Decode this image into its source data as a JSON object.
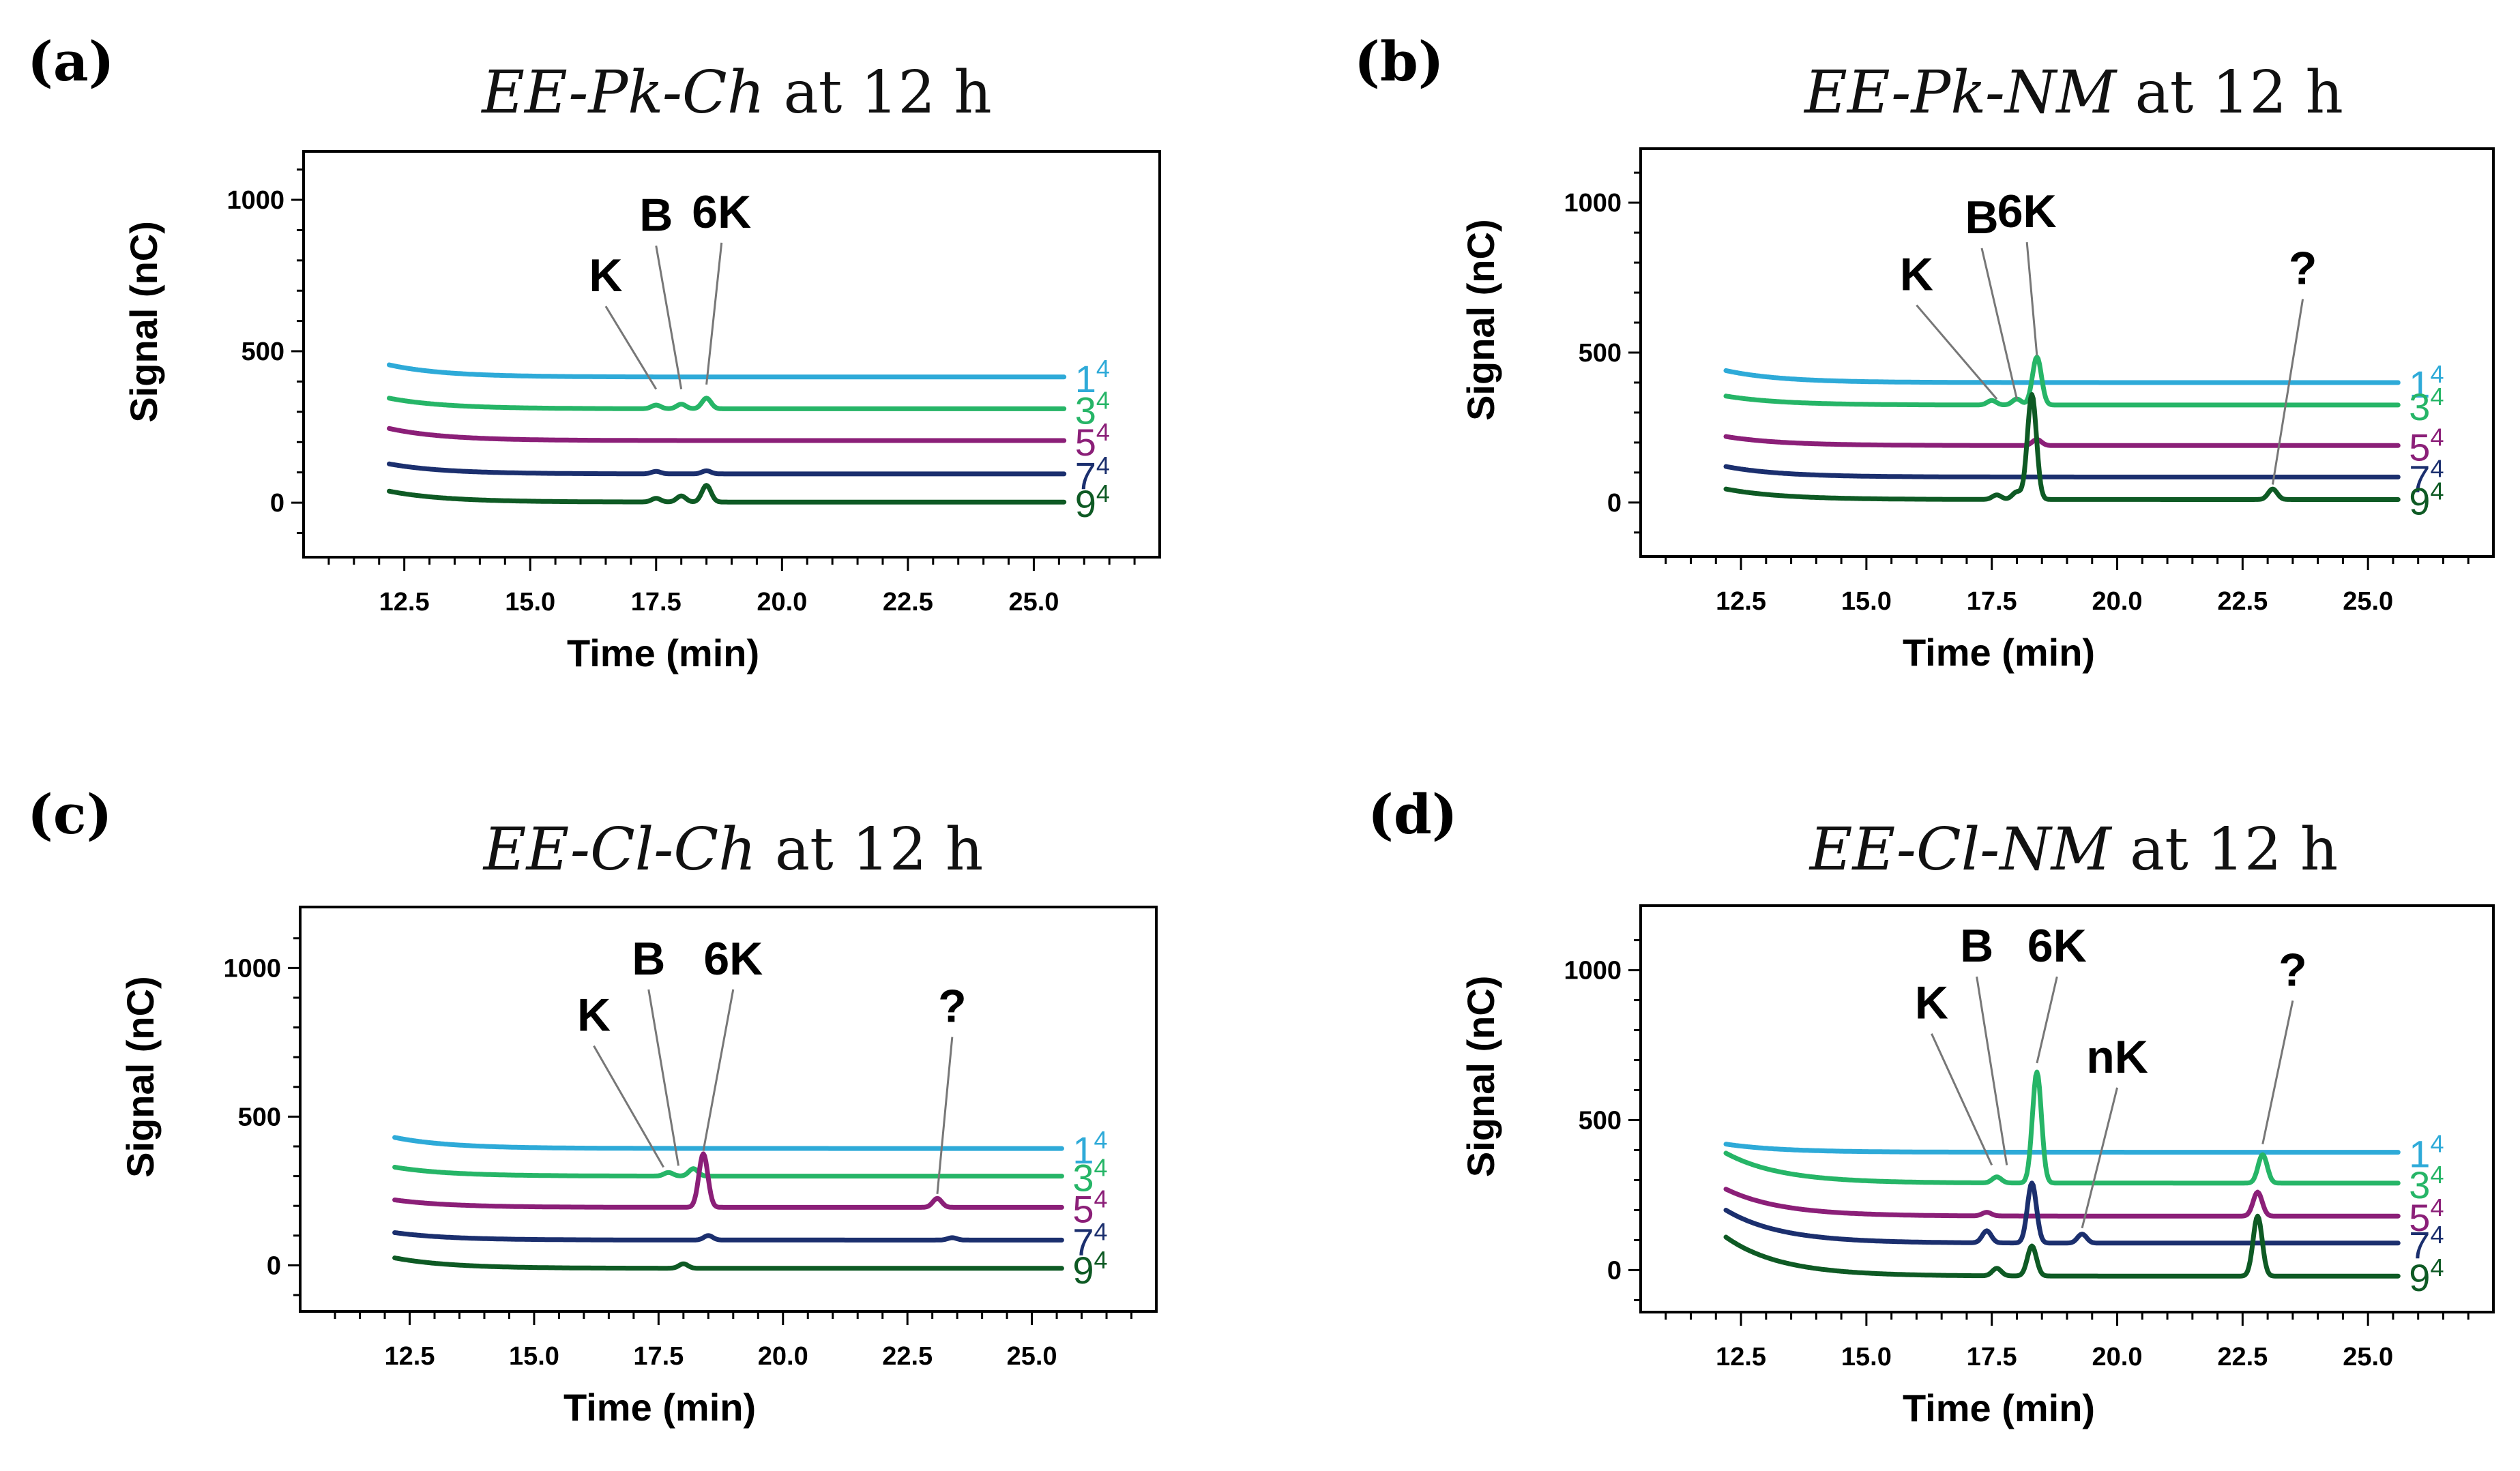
{
  "chart_data": [
    {
      "type": "line",
      "panel_label": "(a)",
      "title_italic": "EE-Pk-Ch",
      "title_rest": " at 12 h",
      "xlabel": "Time (min)",
      "ylabel": "Signal (nC)",
      "xlim": [
        10.5,
        27.5
      ],
      "ylim": [
        -180,
        1160
      ],
      "xticks": [
        "12.5",
        "15.0",
        "17.5",
        "20.0",
        "22.5",
        "25.0"
      ],
      "yticks": [
        "0",
        "500",
        "1000"
      ],
      "series": [
        {
          "name": "1",
          "sup": "4",
          "color": "#2eaad8",
          "baseline": 415,
          "start": 455,
          "peaks": []
        },
        {
          "name": "3",
          "sup": "4",
          "color": "#26b567",
          "baseline": 310,
          "start": 345,
          "peaks": [
            [
              17.5,
              12
            ],
            [
              18.0,
              15
            ],
            [
              18.5,
              35
            ]
          ]
        },
        {
          "name": "5",
          "sup": "4",
          "color": "#8b1f78",
          "baseline": 205,
          "start": 245,
          "peaks": []
        },
        {
          "name": "7",
          "sup": "4",
          "color": "#1b2f6e",
          "baseline": 95,
          "start": 128,
          "peaks": [
            [
              17.5,
              8
            ],
            [
              18.5,
              10
            ]
          ]
        },
        {
          "name": "9",
          "sup": "4",
          "color": "#0e5a24",
          "baseline": 2,
          "start": 38,
          "peaks": [
            [
              17.5,
              12
            ],
            [
              18.0,
              20
            ],
            [
              18.5,
              55
            ]
          ]
        }
      ],
      "annotations": [
        {
          "text": "K",
          "x": 17.5,
          "signal": 375,
          "label_x": 16.5,
          "label_y": 680
        },
        {
          "text": "B",
          "x": 18.0,
          "signal": 375,
          "label_x": 17.5,
          "label_y": 880
        },
        {
          "text": "6K",
          "x": 18.5,
          "signal": 390,
          "label_x": 18.8,
          "label_y": 890
        }
      ]
    },
    {
      "type": "line",
      "panel_label": "(b)",
      "title_italic": "EE-Pk-NM",
      "title_rest": " at 12 h",
      "xlabel": "Time (min)",
      "ylabel": "Signal (nC)",
      "xlim": [
        10.5,
        27.5
      ],
      "ylim": [
        -180,
        1180
      ],
      "xticks": [
        "12.5",
        "15.0",
        "17.5",
        "20.0",
        "22.5",
        "25.0"
      ],
      "yticks": [
        "0",
        "500",
        "1000"
      ],
      "series": [
        {
          "name": "1",
          "sup": "4",
          "color": "#2eaad8",
          "baseline": 400,
          "start": 440,
          "peaks": []
        },
        {
          "name": "3",
          "sup": "4",
          "color": "#26b567",
          "baseline": 325,
          "start": 355,
          "peaks": [
            [
              17.5,
              15
            ],
            [
              18.0,
              20
            ],
            [
              18.4,
              160
            ]
          ]
        },
        {
          "name": "5",
          "sup": "4",
          "color": "#8b1f78",
          "baseline": 190,
          "start": 220,
          "peaks": [
            [
              18.4,
              20
            ]
          ]
        },
        {
          "name": "7",
          "sup": "4",
          "color": "#1b2f6e",
          "baseline": 85,
          "start": 120,
          "peaks": []
        },
        {
          "name": "9",
          "sup": "4",
          "color": "#0e5a24",
          "baseline": 10,
          "start": 45,
          "peaks": [
            [
              17.6,
              15
            ],
            [
              18.0,
              25
            ],
            [
              18.3,
              350
            ],
            [
              23.1,
              35
            ]
          ]
        }
      ],
      "annotations": [
        {
          "text": "K",
          "x": 17.6,
          "signal": 345,
          "label_x": 16.0,
          "label_y": 690
        },
        {
          "text": "B",
          "x": 18.0,
          "signal": 345,
          "label_x": 17.3,
          "label_y": 880
        },
        {
          "text": "6K",
          "x": 18.4,
          "signal": 490,
          "label_x": 18.2,
          "label_y": 900
        },
        {
          "text": "?",
          "x": 23.1,
          "signal": 60,
          "label_x": 23.7,
          "label_y": 710
        }
      ]
    },
    {
      "type": "line",
      "panel_label": "(c)",
      "title_italic": "EE-Cl-Ch",
      "title_rest": " at 12 h",
      "xlabel": "Time (min)",
      "ylabel": "Signal (nC)",
      "xlim": [
        10.3,
        27.5
      ],
      "ylim": [
        -155,
        1205
      ],
      "xticks": [
        "12.5",
        "15.0",
        "17.5",
        "20.0",
        "22.5",
        "25.0"
      ],
      "yticks": [
        "0",
        "500",
        "1000"
      ],
      "series": [
        {
          "name": "1",
          "sup": "4",
          "color": "#2eaad8",
          "baseline": 393,
          "start": 430,
          "peaks": []
        },
        {
          "name": "3",
          "sup": "4",
          "color": "#26b567",
          "baseline": 300,
          "start": 330,
          "peaks": [
            [
              17.7,
              12
            ],
            [
              18.2,
              25
            ]
          ]
        },
        {
          "name": "5",
          "sup": "4",
          "color": "#8b1f78",
          "baseline": 195,
          "start": 220,
          "peaks": [
            [
              18.4,
              180
            ],
            [
              23.1,
              30
            ]
          ]
        },
        {
          "name": "7",
          "sup": "4",
          "color": "#1b2f6e",
          "baseline": 85,
          "start": 110,
          "peaks": [
            [
              18.5,
              15
            ],
            [
              23.4,
              8
            ]
          ]
        },
        {
          "name": "9",
          "sup": "4",
          "color": "#0e5a24",
          "baseline": -10,
          "start": 25,
          "peaks": [
            [
              18.0,
              15
            ]
          ]
        }
      ],
      "annotations": [
        {
          "text": "K",
          "x": 17.6,
          "signal": 330,
          "label_x": 16.2,
          "label_y": 770
        },
        {
          "text": "B",
          "x": 17.9,
          "signal": 335,
          "label_x": 17.3,
          "label_y": 960
        },
        {
          "text": "6K",
          "x": 18.4,
          "signal": 385,
          "label_x": 19.0,
          "label_y": 960
        },
        {
          "text": "?",
          "x": 23.1,
          "signal": 240,
          "label_x": 23.4,
          "label_y": 800
        }
      ]
    },
    {
      "type": "line",
      "panel_label": "(d)",
      "title_italic": "EE-Cl-NM",
      "title_rest": " at 12 h",
      "xlabel": "Time (min)",
      "ylabel": "Signal (nC)",
      "xlim": [
        10.5,
        27.5
      ],
      "ylim": [
        -140,
        1215
      ],
      "xticks": [
        "12.5",
        "15.0",
        "17.5",
        "20.0",
        "22.5",
        "25.0"
      ],
      "yticks": [
        "0",
        "500",
        "1000"
      ],
      "series": [
        {
          "name": "1",
          "sup": "4",
          "color": "#2eaad8",
          "baseline": 393,
          "start": 420,
          "peaks": []
        },
        {
          "name": "3",
          "sup": "4",
          "color": "#26b567",
          "baseline": 290,
          "start": 390,
          "peaks": [
            [
              17.6,
              20
            ],
            [
              18.4,
              370
            ],
            [
              22.9,
              95
            ]
          ]
        },
        {
          "name": "5",
          "sup": "4",
          "color": "#8b1f78",
          "baseline": 180,
          "start": 270,
          "peaks": [
            [
              17.4,
              12
            ],
            [
              22.8,
              80
            ]
          ]
        },
        {
          "name": "7",
          "sup": "4",
          "color": "#1b2f6e",
          "baseline": 90,
          "start": 200,
          "peaks": [
            [
              17.4,
              40
            ],
            [
              18.3,
              200
            ],
            [
              19.3,
              30
            ]
          ]
        },
        {
          "name": "9",
          "sup": "4",
          "color": "#0e5a24",
          "baseline": -20,
          "start": 110,
          "peaks": [
            [
              17.6,
              25
            ],
            [
              18.3,
              100
            ],
            [
              22.8,
              200
            ]
          ]
        }
      ],
      "annotations": [
        {
          "text": "K",
          "x": 17.5,
          "signal": 350,
          "label_x": 16.3,
          "label_y": 820
        },
        {
          "text": "B",
          "x": 17.8,
          "signal": 350,
          "label_x": 17.2,
          "label_y": 1010
        },
        {
          "text": "6K",
          "x": 18.4,
          "signal": 690,
          "label_x": 18.8,
          "label_y": 1010
        },
        {
          "text": "nK",
          "x": 19.3,
          "signal": 140,
          "label_x": 20.0,
          "label_y": 640
        },
        {
          "text": "?",
          "x": 22.9,
          "signal": 420,
          "label_x": 23.5,
          "label_y": 930
        }
      ]
    }
  ]
}
